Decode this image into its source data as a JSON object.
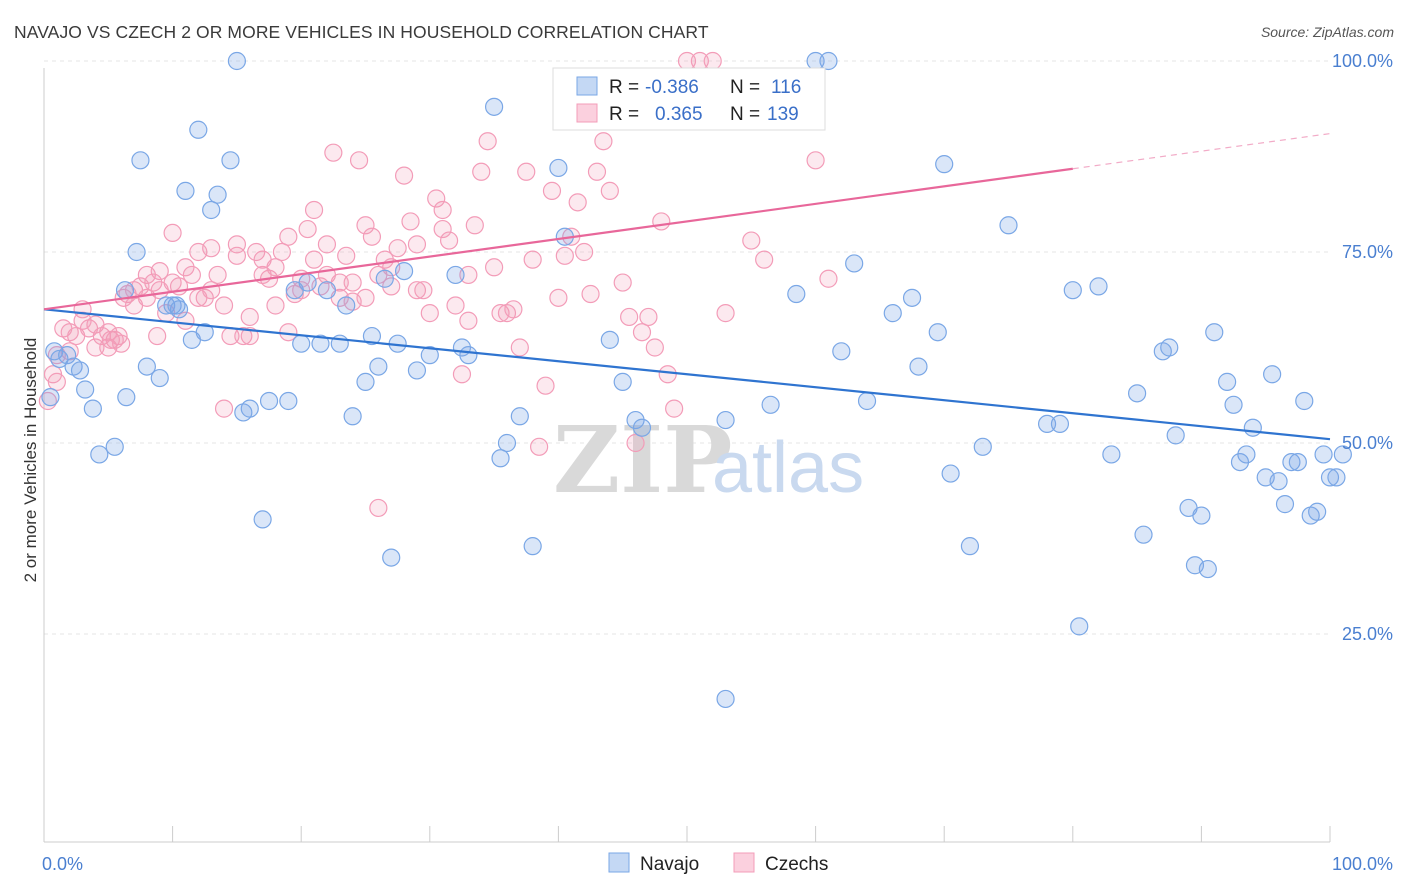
{
  "header": {
    "title": "NAVAJO VS CZECH 2 OR MORE VEHICLES IN HOUSEHOLD CORRELATION CHART",
    "source": "Source: ZipAtlas.com"
  },
  "watermark": {
    "zip": "ZIP",
    "atlas": "atlas"
  },
  "legend_box": {
    "rows": [
      {
        "r_label": "R =",
        "r_value": "-0.386",
        "n_label": "N =",
        "n_value": "116",
        "color": "#7aa7e6"
      },
      {
        "r_label": "R =",
        "r_value": "0.365",
        "n_label": "N =",
        "n_value": "139",
        "color": "#f39cb8"
      }
    ]
  },
  "chart_data": {
    "type": "scatter",
    "title": "NAVAJO VS CZECH 2 OR MORE VEHICLES IN HOUSEHOLD CORRELATION CHART",
    "xlabel": "",
    "ylabel": "2 or more Vehicles in Household",
    "xlim": [
      0,
      100
    ],
    "ylim": [
      0,
      100
    ],
    "x_tick_labels": [
      "0.0%",
      "100.0%"
    ],
    "y_ticks": [
      25,
      50,
      75,
      100
    ],
    "y_tick_labels": [
      "25.0%",
      "50.0%",
      "75.0%",
      "100.0%"
    ],
    "grid": true,
    "legend_position": "bottom-center",
    "series": [
      {
        "name": "Navajo",
        "color": "#7aa7e6",
        "r": -0.386,
        "n": 116,
        "trend": {
          "x0": 0,
          "y0": 67.5,
          "x1": 100,
          "y1": 50.5,
          "solid_until": 100
        },
        "points": [
          [
            0.5,
            56
          ],
          [
            0.8,
            62
          ],
          [
            1.2,
            61
          ],
          [
            1.8,
            61.5
          ],
          [
            2.3,
            60
          ],
          [
            2.8,
            59.5
          ],
          [
            3.2,
            57
          ],
          [
            3.8,
            54.5
          ],
          [
            4.3,
            48.5
          ],
          [
            5.5,
            49.5
          ],
          [
            6.3,
            70
          ],
          [
            6.4,
            56
          ],
          [
            7.2,
            75
          ],
          [
            7.5,
            87
          ],
          [
            8,
            60
          ],
          [
            9,
            58.5
          ],
          [
            9.5,
            68
          ],
          [
            10,
            68
          ],
          [
            10.3,
            68
          ],
          [
            10.5,
            67.5
          ],
          [
            11,
            83
          ],
          [
            11.5,
            63.5
          ],
          [
            12,
            91
          ],
          [
            12.5,
            64.5
          ],
          [
            13,
            80.5
          ],
          [
            13.5,
            82.5
          ],
          [
            14.5,
            87
          ],
          [
            15,
            100
          ],
          [
            15.5,
            54
          ],
          [
            16,
            54.5
          ],
          [
            17,
            40
          ],
          [
            17.5,
            55.5
          ],
          [
            19,
            55.5
          ],
          [
            19.5,
            70
          ],
          [
            20,
            63
          ],
          [
            20.5,
            71
          ],
          [
            21.5,
            63
          ],
          [
            22,
            70
          ],
          [
            23,
            63
          ],
          [
            23.5,
            68
          ],
          [
            24,
            53.5
          ],
          [
            25,
            58
          ],
          [
            25.5,
            64
          ],
          [
            26,
            60
          ],
          [
            26.5,
            71.5
          ],
          [
            27,
            35
          ],
          [
            27.5,
            63
          ],
          [
            28,
            72.5
          ],
          [
            29,
            59.5
          ],
          [
            30,
            61.5
          ],
          [
            32,
            72
          ],
          [
            32.5,
            62.5
          ],
          [
            33,
            61.5
          ],
          [
            35,
            94
          ],
          [
            35.5,
            48
          ],
          [
            36,
            50
          ],
          [
            37,
            53.5
          ],
          [
            38,
            36.5
          ],
          [
            40,
            86
          ],
          [
            40.5,
            77
          ],
          [
            44,
            63.5
          ],
          [
            45,
            58
          ],
          [
            46,
            53
          ],
          [
            46.5,
            52
          ],
          [
            53,
            53
          ],
          [
            56.5,
            55
          ],
          [
            58.5,
            69.5
          ],
          [
            60,
            100
          ],
          [
            61,
            100
          ],
          [
            62,
            62
          ],
          [
            63,
            73.5
          ],
          [
            64,
            55.5
          ],
          [
            66,
            67
          ],
          [
            67.5,
            69
          ],
          [
            68,
            60
          ],
          [
            69.5,
            64.5
          ],
          [
            70,
            86.5
          ],
          [
            70.5,
            46
          ],
          [
            72,
            36.5
          ],
          [
            73,
            49.5
          ],
          [
            75,
            78.5
          ],
          [
            78,
            52.5
          ],
          [
            79,
            52.5
          ],
          [
            80,
            70
          ],
          [
            82,
            70.5
          ],
          [
            83,
            48.5
          ],
          [
            85,
            56.5
          ],
          [
            85.5,
            38
          ],
          [
            87,
            62
          ],
          [
            87.5,
            62.5
          ],
          [
            88,
            51
          ],
          [
            89,
            41.5
          ],
          [
            89.5,
            34
          ],
          [
            90,
            40.5
          ],
          [
            90.5,
            33.5
          ],
          [
            91,
            64.5
          ],
          [
            92,
            58
          ],
          [
            92.5,
            55
          ],
          [
            93,
            47.5
          ],
          [
            93.5,
            48.5
          ],
          [
            94,
            52
          ],
          [
            95,
            45.5
          ],
          [
            95.5,
            59
          ],
          [
            96,
            45
          ],
          [
            96.5,
            42
          ],
          [
            97,
            47.5
          ],
          [
            97.5,
            47.5
          ],
          [
            98,
            55.5
          ],
          [
            98.5,
            40.5
          ],
          [
            99,
            41
          ],
          [
            99.5,
            48.5
          ],
          [
            100,
            45.5
          ],
          [
            100.5,
            45.5
          ],
          [
            101,
            48.5
          ],
          [
            80.5,
            26
          ],
          [
            53,
            16.5
          ]
        ]
      },
      {
        "name": "Czechs",
        "color": "#f39cb8",
        "r": 0.365,
        "n": 139,
        "trend": {
          "x0": 0,
          "y0": 67.5,
          "x1": 100,
          "y1": 90.5,
          "solid_until": 80
        },
        "points": [
          [
            0.3,
            55.5
          ],
          [
            0.7,
            59
          ],
          [
            1,
            61.5
          ],
          [
            1.5,
            65
          ],
          [
            2,
            64.5
          ],
          [
            2.5,
            64
          ],
          [
            3,
            67.5
          ],
          [
            3.5,
            65
          ],
          [
            4,
            65.5
          ],
          [
            4.5,
            64
          ],
          [
            5,
            62.5
          ],
          [
            5.2,
            63.5
          ],
          [
            5.5,
            63.5
          ],
          [
            5.8,
            64
          ],
          [
            6.2,
            69
          ],
          [
            6.5,
            69.5
          ],
          [
            7,
            70
          ],
          [
            7.5,
            70.5
          ],
          [
            8,
            72
          ],
          [
            8.5,
            71
          ],
          [
            8.8,
            64
          ],
          [
            9,
            72.5
          ],
          [
            9.5,
            67
          ],
          [
            10,
            77.5
          ],
          [
            10.5,
            70.5
          ],
          [
            11,
            66
          ],
          [
            11.5,
            72
          ],
          [
            12,
            75
          ],
          [
            12.5,
            69
          ],
          [
            13,
            70
          ],
          [
            13.5,
            72
          ],
          [
            14,
            54.5
          ],
          [
            14.5,
            64
          ],
          [
            15,
            74.5
          ],
          [
            15.5,
            64
          ],
          [
            16,
            66.5
          ],
          [
            16.5,
            75
          ],
          [
            17,
            74
          ],
          [
            17.5,
            71.5
          ],
          [
            18,
            68
          ],
          [
            18.5,
            75
          ],
          [
            19,
            64.5
          ],
          [
            19.5,
            69.5
          ],
          [
            20,
            71.5
          ],
          [
            20.5,
            78
          ],
          [
            21,
            80.5
          ],
          [
            21.5,
            70.5
          ],
          [
            22,
            76
          ],
          [
            22.5,
            88
          ],
          [
            23,
            69
          ],
          [
            23.5,
            74.5
          ],
          [
            24,
            71
          ],
          [
            24.5,
            87
          ],
          [
            25,
            78.5
          ],
          [
            25.5,
            77
          ],
          [
            26,
            72
          ],
          [
            26.5,
            74
          ],
          [
            27,
            70.5
          ],
          [
            27.5,
            75.5
          ],
          [
            28,
            85
          ],
          [
            28.5,
            79
          ],
          [
            29,
            70
          ],
          [
            29.5,
            70
          ],
          [
            30,
            67
          ],
          [
            30.5,
            82
          ],
          [
            31,
            80.5
          ],
          [
            31.5,
            76.5
          ],
          [
            32,
            68
          ],
          [
            32.5,
            59
          ],
          [
            33,
            66
          ],
          [
            33.5,
            78.5
          ],
          [
            34,
            85.5
          ],
          [
            34.5,
            89.5
          ],
          [
            35,
            73
          ],
          [
            35.5,
            67
          ],
          [
            36,
            67
          ],
          [
            36.5,
            67.5
          ],
          [
            37,
            62.5
          ],
          [
            37.5,
            85.5
          ],
          [
            38,
            74
          ],
          [
            38.5,
            49.5
          ],
          [
            39,
            57.5
          ],
          [
            39.5,
            83
          ],
          [
            40,
            69
          ],
          [
            40.5,
            74.5
          ],
          [
            41,
            77
          ],
          [
            41.5,
            81.5
          ],
          [
            42,
            75
          ],
          [
            42.5,
            69.5
          ],
          [
            43,
            85.5
          ],
          [
            43.5,
            89.5
          ],
          [
            44,
            83
          ],
          [
            45,
            71
          ],
          [
            45.5,
            66.5
          ],
          [
            46,
            50
          ],
          [
            46.5,
            64.5
          ],
          [
            47,
            66.5
          ],
          [
            47.5,
            62.5
          ],
          [
            48,
            79
          ],
          [
            48.5,
            59
          ],
          [
            49,
            54.5
          ],
          [
            50,
            100
          ],
          [
            51,
            100
          ],
          [
            52,
            100
          ],
          [
            53,
            67
          ],
          [
            55,
            76.5
          ],
          [
            56,
            74
          ],
          [
            60,
            87
          ],
          [
            61,
            71.5
          ],
          [
            26,
            41.5
          ],
          [
            24,
            68.5
          ],
          [
            22,
            72
          ],
          [
            20,
            70
          ],
          [
            18,
            73
          ],
          [
            16,
            64
          ],
          [
            14,
            68
          ],
          [
            12,
            69
          ],
          [
            10,
            71
          ],
          [
            8,
            69
          ],
          [
            6,
            63
          ],
          [
            4,
            62.5
          ],
          [
            2,
            62
          ],
          [
            1,
            58
          ],
          [
            3,
            66
          ],
          [
            5,
            64.5
          ],
          [
            7,
            68
          ],
          [
            9,
            70
          ],
          [
            11,
            73
          ],
          [
            13,
            75.5
          ],
          [
            15,
            76
          ],
          [
            17,
            72
          ],
          [
            19,
            77
          ],
          [
            21,
            74
          ],
          [
            23,
            71
          ],
          [
            25,
            69
          ],
          [
            27,
            73
          ],
          [
            29,
            76
          ],
          [
            31,
            78
          ],
          [
            33,
            72
          ]
        ]
      }
    ]
  }
}
